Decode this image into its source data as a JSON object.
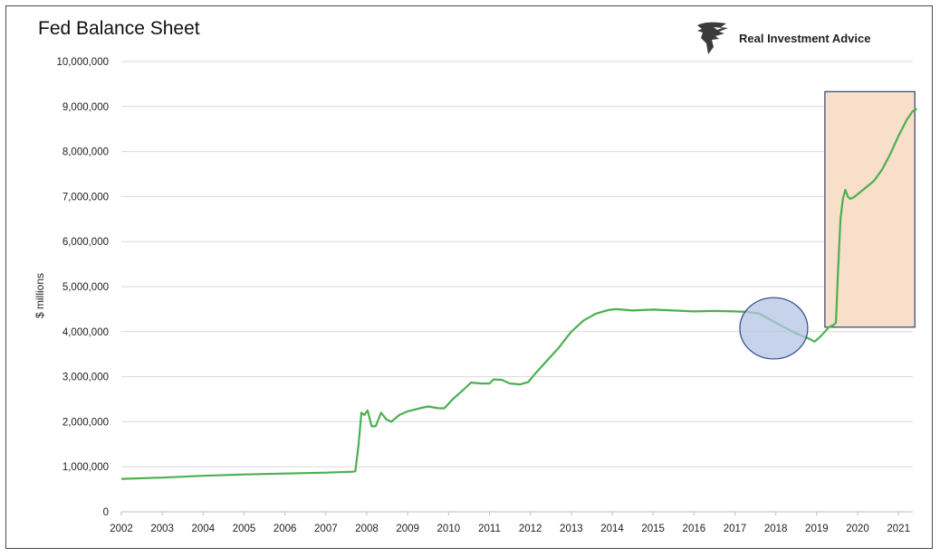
{
  "title": "Fed Balance Sheet",
  "brand": {
    "name": "Real Investment Advice",
    "logo_icon": "eagle-head-logo-icon"
  },
  "colors": {
    "line": "#4caf50",
    "gridline": "#d9d9d9",
    "circle_fill": "#b4c3e4",
    "circle_stroke": "#2f4a8a",
    "box_fill": "#f8dfc9",
    "box_stroke": "#2f3f7a"
  },
  "chart_data": {
    "type": "line",
    "title": "Fed Balance Sheet",
    "xlabel": "",
    "ylabel": "$ millions",
    "xlim": [
      2002,
      2021.35
    ],
    "ylim": [
      0,
      10000000
    ],
    "grid": true,
    "x_ticks": [
      "2002",
      "2003",
      "2004",
      "2005",
      "2006",
      "2007",
      "2008",
      "2009",
      "2010",
      "2011",
      "2012",
      "2013",
      "2014",
      "2015",
      "2016",
      "2017",
      "2018",
      "2019",
      "2020",
      "2021"
    ],
    "y_ticks": [
      "0",
      "1,000,000",
      "2,000,000",
      "3,000,000",
      "4,000,000",
      "5,000,000",
      "6,000,000",
      "7,000,000",
      "8,000,000",
      "9,000,000",
      "10,000,000"
    ],
    "series": [
      {
        "points": [
          [
            2002.0,
            730000
          ],
          [
            2003.0,
            760000
          ],
          [
            2004.0,
            800000
          ],
          [
            2005.0,
            830000
          ],
          [
            2006.0,
            850000
          ],
          [
            2007.0,
            870000
          ],
          [
            2007.65,
            890000
          ],
          [
            2007.72,
            900000
          ],
          [
            2007.8,
            1500000
          ],
          [
            2007.87,
            2200000
          ],
          [
            2007.94,
            2150000
          ],
          [
            2008.02,
            2250000
          ],
          [
            2008.12,
            1900000
          ],
          [
            2008.22,
            1900000
          ],
          [
            2008.35,
            2200000
          ],
          [
            2008.48,
            2050000
          ],
          [
            2008.6,
            2000000
          ],
          [
            2008.8,
            2150000
          ],
          [
            2009.0,
            2230000
          ],
          [
            2009.3,
            2300000
          ],
          [
            2009.5,
            2340000
          ],
          [
            2009.75,
            2300000
          ],
          [
            2009.9,
            2300000
          ],
          [
            2010.1,
            2500000
          ],
          [
            2010.35,
            2700000
          ],
          [
            2010.55,
            2870000
          ],
          [
            2010.8,
            2850000
          ],
          [
            2011.0,
            2850000
          ],
          [
            2011.1,
            2940000
          ],
          [
            2011.3,
            2930000
          ],
          [
            2011.5,
            2850000
          ],
          [
            2011.75,
            2830000
          ],
          [
            2011.95,
            2880000
          ],
          [
            2012.1,
            3050000
          ],
          [
            2012.4,
            3350000
          ],
          [
            2012.7,
            3650000
          ],
          [
            2013.0,
            4000000
          ],
          [
            2013.3,
            4250000
          ],
          [
            2013.6,
            4400000
          ],
          [
            2013.9,
            4480000
          ],
          [
            2014.1,
            4500000
          ],
          [
            2014.5,
            4470000
          ],
          [
            2015.0,
            4490000
          ],
          [
            2015.5,
            4470000
          ],
          [
            2016.0,
            4450000
          ],
          [
            2016.5,
            4460000
          ],
          [
            2017.0,
            4450000
          ],
          [
            2017.3,
            4440000
          ],
          [
            2017.6,
            4400000
          ],
          [
            2017.9,
            4250000
          ],
          [
            2018.2,
            4100000
          ],
          [
            2018.5,
            3960000
          ],
          [
            2018.8,
            3850000
          ],
          [
            2018.95,
            3780000
          ],
          [
            2019.1,
            3900000
          ],
          [
            2019.3,
            4100000
          ],
          [
            2019.42,
            4150000
          ],
          [
            2019.47,
            4200000
          ],
          [
            2019.52,
            5300000
          ],
          [
            2019.58,
            6500000
          ],
          [
            2019.64,
            6950000
          ],
          [
            2019.7,
            7150000
          ],
          [
            2019.76,
            7000000
          ],
          [
            2019.82,
            6950000
          ],
          [
            2019.9,
            6980000
          ],
          [
            2020.0,
            7050000
          ],
          [
            2020.2,
            7200000
          ],
          [
            2020.4,
            7350000
          ],
          [
            2020.6,
            7600000
          ],
          [
            2020.8,
            7950000
          ],
          [
            2021.0,
            8350000
          ],
          [
            2021.2,
            8700000
          ],
          [
            2021.35,
            8900000
          ],
          [
            2021.45,
            8950000
          ]
        ]
      }
    ],
    "annotations": [
      {
        "shape": "circle",
        "x_center": 2017.95,
        "y_center": 4075000,
        "x_radius": 0.83,
        "y_radius": 680000
      },
      {
        "shape": "rectangle",
        "x0": 2019.2,
        "x1": 2021.4,
        "y0": 4100000,
        "y1": 9330000
      }
    ]
  }
}
